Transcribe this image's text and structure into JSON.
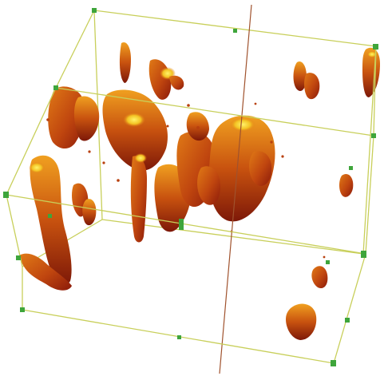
{
  "scene": {
    "background": "#ffffff",
    "box_edge_color": "#c8cf5a",
    "handle_color": "#3ea53b",
    "axis_line_color": "#a0522d",
    "volume_colors": {
      "dark": "#8b1a0a",
      "mid": "#c0460f",
      "bright": "#e07a16",
      "highlight": "#f7df2a"
    }
  }
}
